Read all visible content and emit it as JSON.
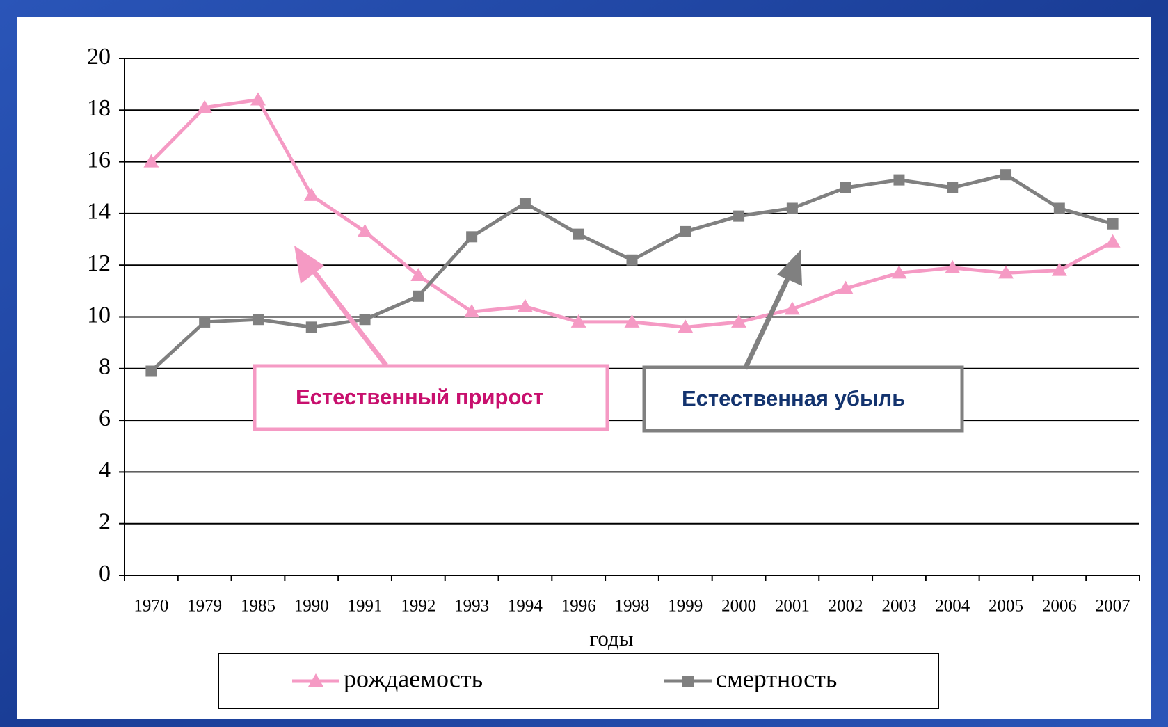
{
  "chart_data": {
    "type": "line",
    "x_label": "годы",
    "categories": [
      "1970",
      "1979",
      "1985",
      "1990",
      "1991",
      "1992",
      "1993",
      "1994",
      "1996",
      "1998",
      "1999",
      "2000",
      "2001",
      "2002",
      "2003",
      "2004",
      "2005",
      "2006",
      "2007"
    ],
    "series": [
      {
        "name": "рождаемость",
        "color": "#f59ac4",
        "marker": "triangle",
        "values": [
          16.0,
          18.1,
          18.4,
          14.7,
          13.3,
          11.6,
          10.2,
          10.4,
          9.8,
          9.8,
          9.6,
          9.8,
          10.3,
          11.1,
          11.7,
          11.9,
          11.7,
          11.8,
          12.9
        ]
      },
      {
        "name": "смертность",
        "color": "#808080",
        "marker": "square",
        "values": [
          7.9,
          9.8,
          9.9,
          9.6,
          9.9,
          10.8,
          13.1,
          14.4,
          13.2,
          12.2,
          13.3,
          13.9,
          14.2,
          15.0,
          15.3,
          15.0,
          15.5,
          14.2,
          13.6
        ]
      }
    ],
    "ylim": [
      0,
      20
    ],
    "yticks": [
      0,
      2,
      4,
      6,
      8,
      10,
      12,
      14,
      16,
      18,
      20
    ],
    "grid": true,
    "legend": "bottom",
    "annotations": [
      {
        "text": "Естественный прирост",
        "color": "#c8106e",
        "border": "#f59ac4"
      },
      {
        "text": "Естественная убыль",
        "color": "#13336e",
        "border": "#808080"
      }
    ]
  }
}
